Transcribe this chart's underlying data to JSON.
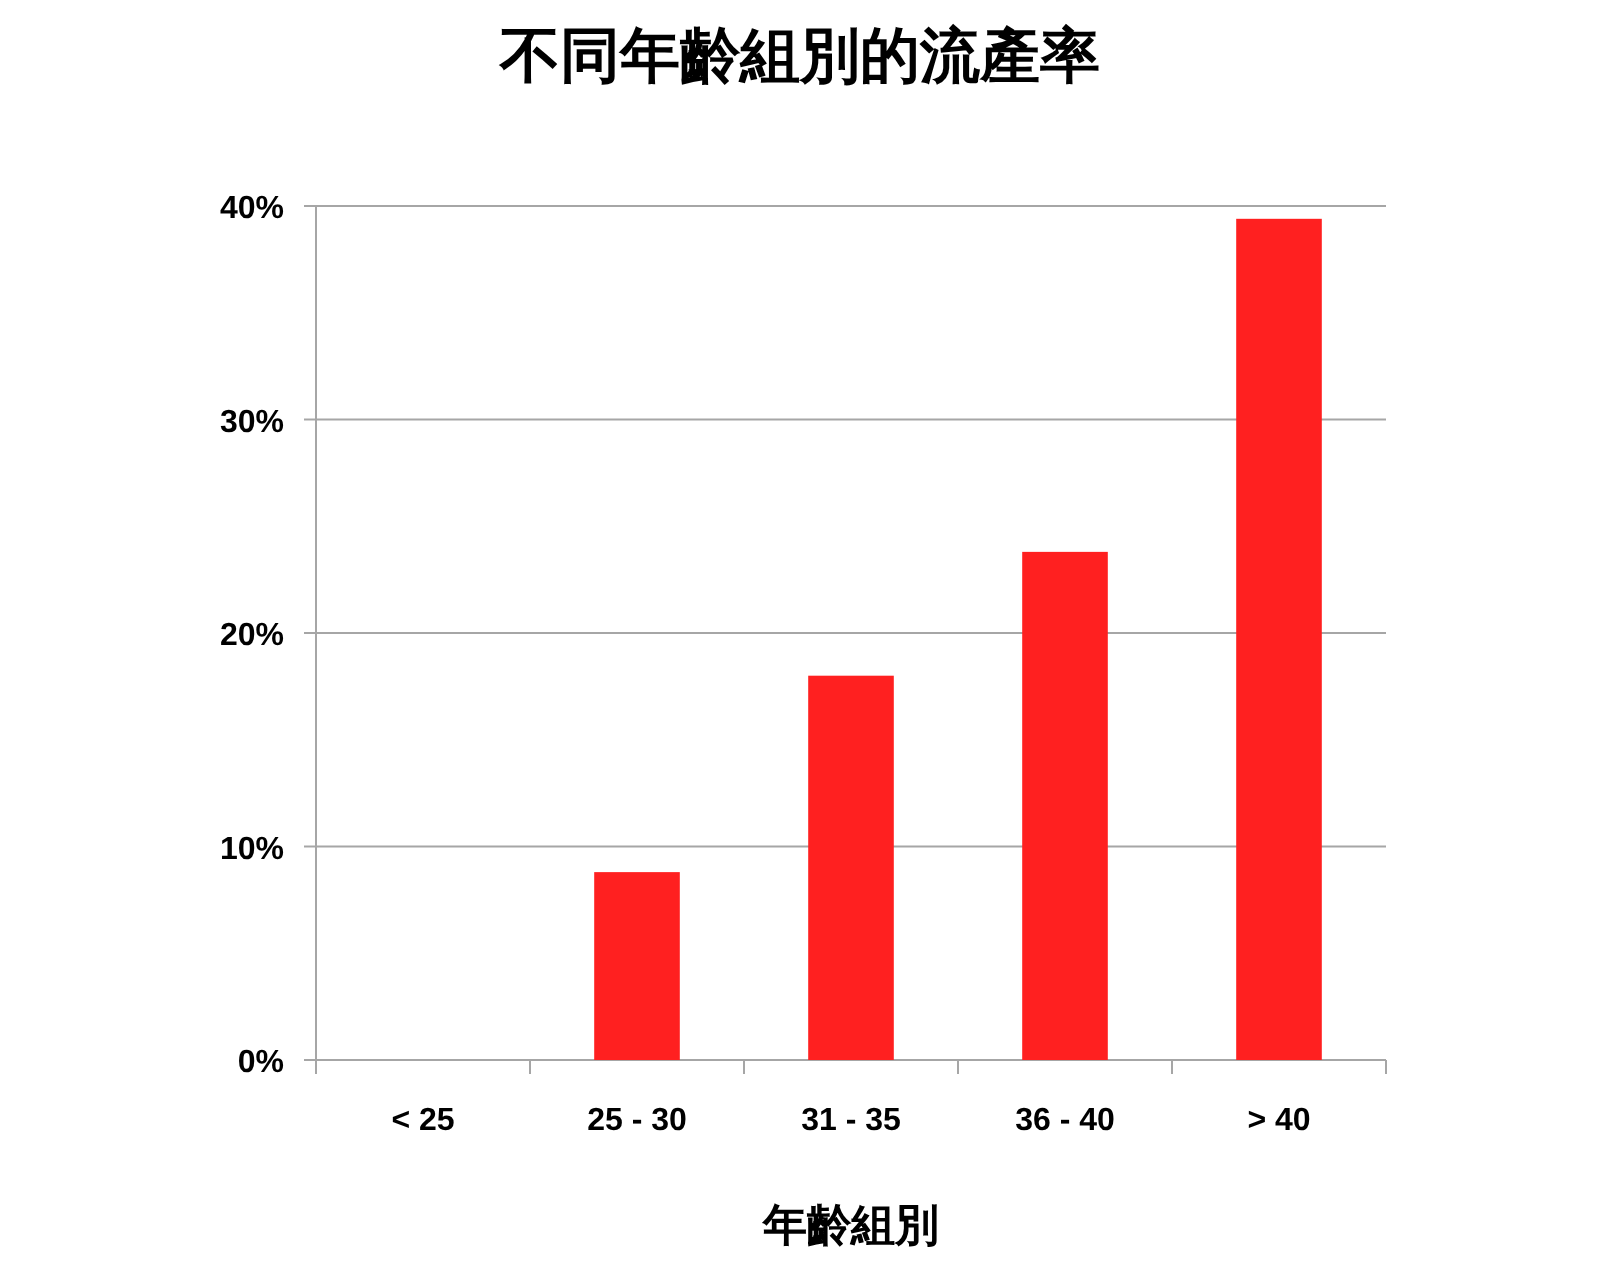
{
  "chart_data": {
    "type": "bar",
    "title": "不同年齡組別的流產率",
    "xlabel": "年齡組別",
    "categories": [
      "< 25",
      "25 - 30",
      "31 - 35",
      "36 - 40",
      "> 40"
    ],
    "values": [
      0,
      8.8,
      18.0,
      23.8,
      39.4
    ],
    "color": "#ff2020",
    "ylim": [
      0,
      40
    ],
    "yticks": [
      {
        "value": 0,
        "label": "0%"
      },
      {
        "value": 10,
        "label": "10%"
      },
      {
        "value": 20,
        "label": "20%"
      },
      {
        "value": 30,
        "label": "30%"
      },
      {
        "value": 40,
        "label": "40%"
      }
    ],
    "grid": "y"
  }
}
